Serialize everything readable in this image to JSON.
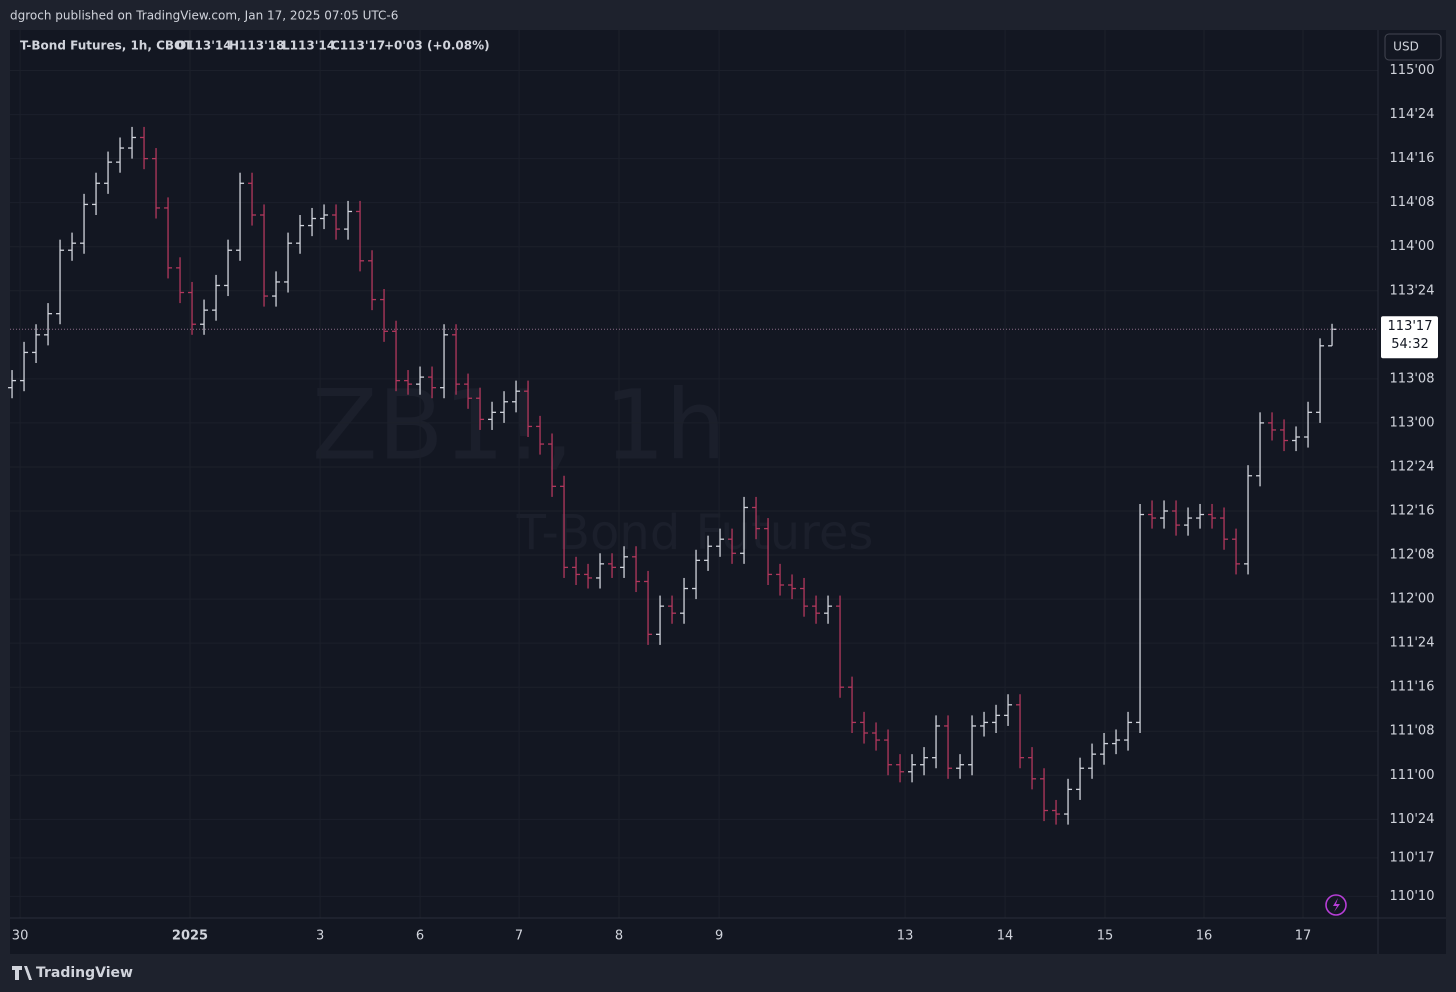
{
  "header": {
    "publisher": "dgroch published on TradingView.com, Jan 17, 2025 07:05 UTC-6",
    "brand": "TradingView"
  },
  "chart_data": {
    "type": "ohlc",
    "title": "T-Bond Futures, 1h, CBOT",
    "ohlc_legend": [
      "O113'14",
      "H113'18",
      "L113'14",
      "C113'17",
      "+0'03 (+0.08%)"
    ],
    "watermark": "ZB1!, 1h",
    "watermark_subtitle": "T-Bond Futures",
    "currency": "USD",
    "last_label": "113'17",
    "countdown": "54:32",
    "up_color": "#d1d4dc",
    "down_color": "#b2385d",
    "grid": true,
    "x": [
      0,
      1,
      2,
      3,
      4,
      5,
      6,
      7,
      8,
      9,
      10,
      11,
      12,
      13,
      14,
      15,
      16,
      17,
      18,
      19,
      20,
      21,
      22,
      23,
      24,
      25,
      26,
      27,
      28,
      29,
      30,
      31,
      32,
      33,
      34,
      35,
      36,
      37,
      38,
      39,
      40,
      41,
      42,
      43,
      44,
      45,
      46,
      47,
      48,
      49,
      50,
      51,
      52,
      53,
      54,
      55,
      56,
      57,
      58,
      59,
      60,
      61,
      62,
      63,
      64,
      65,
      66,
      67,
      68,
      69,
      70,
      71,
      72,
      73,
      74,
      75,
      76,
      77,
      78,
      79,
      80,
      81,
      82,
      83,
      84,
      85,
      86,
      87,
      88,
      89,
      90,
      91,
      92,
      93,
      94,
      95,
      96,
      97,
      98,
      99,
      100,
      101,
      102,
      103,
      104,
      105,
      106,
      107,
      108,
      109,
      110
    ],
    "open": [
      113.2,
      113.24,
      113.4,
      113.5,
      113.62,
      113.98,
      114.02,
      114.24,
      114.36,
      114.48,
      114.56,
      114.62,
      114.5,
      114.22,
      113.88,
      113.74,
      113.56,
      113.64,
      113.78,
      113.98,
      114.36,
      114.18,
      113.72,
      113.8,
      114.02,
      114.12,
      114.16,
      114.18,
      114.1,
      114.2,
      113.92,
      113.7,
      113.52,
      113.24,
      113.22,
      113.26,
      113.2,
      113.5,
      113.22,
      113.14,
      113.02,
      113.06,
      113.12,
      113.18,
      112.98,
      112.88,
      112.64,
      112.18,
      112.14,
      112.12,
      112.2,
      112.18,
      112.24,
      112.1,
      111.8,
      111.96,
      111.92,
      112.06,
      112.22,
      112.3,
      112.34,
      112.26,
      112.52,
      112.4,
      112.14,
      112.08,
      112.06,
      111.96,
      111.92,
      111.96,
      111.5,
      111.3,
      111.24,
      111.2,
      111.06,
      111.02,
      111.06,
      111.1,
      111.28,
      111.04,
      111.06,
      111.28,
      111.3,
      111.34,
      111.4,
      111.1,
      110.98,
      110.8,
      110.78,
      110.92,
      111.04,
      111.12,
      111.18,
      111.2,
      111.3,
      112.48,
      112.46,
      112.5,
      112.42,
      112.46,
      112.48,
      112.46,
      112.34,
      112.2,
      112.7,
      113.0,
      112.96,
      112.9,
      112.92,
      113.06,
      113.4375
    ],
    "high": [
      113.3,
      113.46,
      113.56,
      113.68,
      114.04,
      114.08,
      114.3,
      114.42,
      114.54,
      114.62,
      114.68,
      114.68,
      114.56,
      114.28,
      113.94,
      113.8,
      113.7,
      113.84,
      114.04,
      114.42,
      114.42,
      114.24,
      113.86,
      114.08,
      114.18,
      114.22,
      114.24,
      114.24,
      114.26,
      114.26,
      113.98,
      113.76,
      113.58,
      113.3,
      113.32,
      113.32,
      113.56,
      113.56,
      113.28,
      113.2,
      113.12,
      113.18,
      113.24,
      113.24,
      113.04,
      112.94,
      112.7,
      112.24,
      112.2,
      112.26,
      112.26,
      112.3,
      112.3,
      112.16,
      112.02,
      112.02,
      112.12,
      112.28,
      112.36,
      112.4,
      112.4,
      112.58,
      112.58,
      112.46,
      112.2,
      112.14,
      112.12,
      112.02,
      112.02,
      112.02,
      111.56,
      111.36,
      111.3,
      111.26,
      111.12,
      111.12,
      111.16,
      111.34,
      111.34,
      111.12,
      111.34,
      111.36,
      111.4,
      111.46,
      111.46,
      111.16,
      111.04,
      110.86,
      110.98,
      111.1,
      111.18,
      111.24,
      111.26,
      111.36,
      112.54,
      112.56,
      112.56,
      112.56,
      112.52,
      112.54,
      112.54,
      112.52,
      112.4,
      112.76,
      113.06,
      113.06,
      113.02,
      112.98,
      113.12,
      113.48,
      113.5625
    ],
    "low": [
      113.14,
      113.18,
      113.34,
      113.44,
      113.56,
      113.92,
      113.96,
      114.18,
      114.3,
      114.42,
      114.5,
      114.44,
      114.16,
      113.82,
      113.68,
      113.5,
      113.5,
      113.58,
      113.72,
      113.92,
      114.12,
      113.66,
      113.66,
      113.74,
      113.96,
      114.06,
      114.1,
      114.04,
      114.04,
      113.86,
      113.64,
      113.46,
      113.18,
      113.16,
      113.16,
      113.14,
      113.14,
      113.16,
      113.08,
      112.96,
      112.96,
      113.0,
      113.06,
      112.92,
      112.82,
      112.58,
      112.12,
      112.08,
      112.06,
      112.06,
      112.12,
      112.12,
      112.04,
      111.74,
      111.74,
      111.86,
      111.86,
      112.0,
      112.16,
      112.24,
      112.2,
      112.2,
      112.34,
      112.08,
      112.02,
      112.0,
      111.9,
      111.86,
      111.86,
      111.44,
      111.24,
      111.18,
      111.14,
      111.0,
      110.96,
      110.96,
      111.0,
      111.04,
      110.98,
      110.98,
      111.0,
      111.22,
      111.24,
      111.28,
      111.04,
      110.92,
      110.74,
      110.72,
      110.72,
      110.86,
      110.98,
      111.06,
      111.12,
      111.14,
      111.24,
      112.4,
      112.4,
      112.36,
      112.36,
      112.4,
      112.4,
      112.28,
      112.14,
      112.14,
      112.64,
      112.9,
      112.84,
      112.84,
      112.86,
      113.0,
      113.4375
    ],
    "close": [
      113.24,
      113.4,
      113.5,
      113.62,
      113.98,
      114.02,
      114.24,
      114.36,
      114.48,
      114.56,
      114.62,
      114.5,
      114.22,
      113.88,
      113.74,
      113.56,
      113.64,
      113.78,
      113.98,
      114.36,
      114.18,
      113.72,
      113.8,
      114.02,
      114.12,
      114.16,
      114.18,
      114.1,
      114.2,
      113.92,
      113.7,
      113.52,
      113.24,
      113.22,
      113.26,
      113.2,
      113.5,
      113.22,
      113.14,
      113.02,
      113.06,
      113.12,
      113.18,
      112.98,
      112.88,
      112.64,
      112.18,
      112.14,
      112.12,
      112.2,
      112.18,
      112.24,
      112.1,
      111.8,
      111.96,
      111.92,
      112.06,
      112.22,
      112.3,
      112.34,
      112.26,
      112.52,
      112.4,
      112.14,
      112.08,
      112.06,
      111.96,
      111.92,
      111.96,
      111.5,
      111.3,
      111.24,
      111.2,
      111.06,
      111.02,
      111.06,
      111.1,
      111.28,
      111.04,
      111.06,
      111.28,
      111.3,
      111.34,
      111.4,
      111.1,
      110.98,
      110.8,
      110.78,
      110.92,
      111.04,
      111.12,
      111.18,
      111.2,
      111.3,
      112.48,
      112.46,
      112.5,
      112.42,
      112.46,
      112.48,
      112.46,
      112.34,
      112.2,
      112.7,
      113.0,
      112.96,
      112.9,
      112.92,
      113.06,
      113.4375,
      113.53125
    ],
    "xlim": [
      -0.17,
      113.83
    ],
    "xticks": [
      {
        "value": 0.67,
        "label": "30"
      },
      {
        "value": 14.83,
        "label": "2025"
      },
      {
        "value": 25.67,
        "label": "3"
      },
      {
        "value": 34,
        "label": "6"
      },
      {
        "value": 42.25,
        "label": "7"
      },
      {
        "value": 50.58,
        "label": "8"
      },
      {
        "value": 58.92,
        "label": "9"
      },
      {
        "value": 74.42,
        "label": "13"
      },
      {
        "value": 82.75,
        "label": "14"
      },
      {
        "value": 91.08,
        "label": "15"
      },
      {
        "value": 99.33,
        "label": "16"
      },
      {
        "value": 107.58,
        "label": "17"
      }
    ],
    "ylim": [
      110.19,
      115.23
    ],
    "yticks": [
      {
        "value": 115,
        "label": "115'00"
      },
      {
        "value": 114.75,
        "label": "114'24"
      },
      {
        "value": 114.5,
        "label": "114'16"
      },
      {
        "value": 114.25,
        "label": "114'08"
      },
      {
        "value": 114,
        "label": "114'00"
      },
      {
        "value": 113.75,
        "label": "113'24"
      },
      {
        "value": 113.25,
        "label": "113'08"
      },
      {
        "value": 113,
        "label": "113'00"
      },
      {
        "value": 112.75,
        "label": "112'24"
      },
      {
        "value": 112.5,
        "label": "112'16"
      },
      {
        "value": 112.25,
        "label": "112'08"
      },
      {
        "value": 112,
        "label": "112'00"
      },
      {
        "value": 111.75,
        "label": "111'24"
      },
      {
        "value": 111.5,
        "label": "111'16"
      },
      {
        "value": 111.25,
        "label": "111'08"
      },
      {
        "value": 111,
        "label": "111'00"
      },
      {
        "value": 110.75,
        "label": "110'24"
      },
      {
        "value": 110.53125,
        "label": "110'17"
      },
      {
        "value": 110.3125,
        "label": "110'10"
      }
    ]
  }
}
